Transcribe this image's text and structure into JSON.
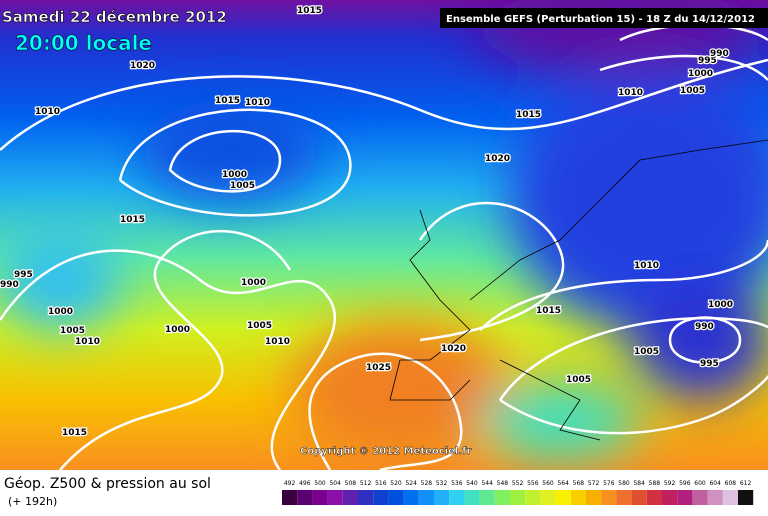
{
  "header": {
    "date": "Samedi 22 décembre 2012",
    "time": "20:00 locale",
    "model": "Ensemble GEFS (Perturbation 15)  -  18 Z du 14/12/2012"
  },
  "copyright": "Copyright © 2012 Meteociel.fr",
  "footer": {
    "title": "Géop. Z500 & pression au sol",
    "subtitle": "(+ 192h)"
  },
  "isobar_labels": [
    "1015",
    "1020",
    "1015",
    "1010",
    "1010",
    "1000",
    "1005",
    "1015",
    "995",
    "990",
    "1000",
    "1000",
    "1005",
    "1010",
    "1000",
    "1005",
    "1010",
    "1025",
    "1020",
    "1015",
    "1020",
    "1010",
    "1005",
    "1000",
    "995",
    "990",
    "1010",
    "1015",
    "1000",
    "990",
    "1005",
    "995",
    "1005",
    "1015"
  ],
  "legend": {
    "values": [
      492,
      496,
      500,
      504,
      508,
      512,
      516,
      520,
      524,
      528,
      532,
      536,
      540,
      544,
      548,
      552,
      556,
      560,
      564,
      568,
      572,
      576,
      580,
      584,
      588,
      592,
      596,
      600,
      604,
      608,
      612
    ],
    "colors": [
      "#3a0040",
      "#5a0070",
      "#7a0090",
      "#8a10a8",
      "#6020b0",
      "#3030c0",
      "#1040d0",
      "#0050e0",
      "#0070f0",
      "#1090f8",
      "#20b0f8",
      "#30d0f0",
      "#40e0c0",
      "#60e890",
      "#80f060",
      "#a0f040",
      "#c0f030",
      "#e0f020",
      "#f8f000",
      "#f8d000",
      "#f8b000",
      "#f89020",
      "#f07030",
      "#e05030",
      "#d03040",
      "#c02060",
      "#b02080",
      "#c060a0",
      "#d090c0",
      "#e0c0e0",
      "#101010"
    ]
  }
}
